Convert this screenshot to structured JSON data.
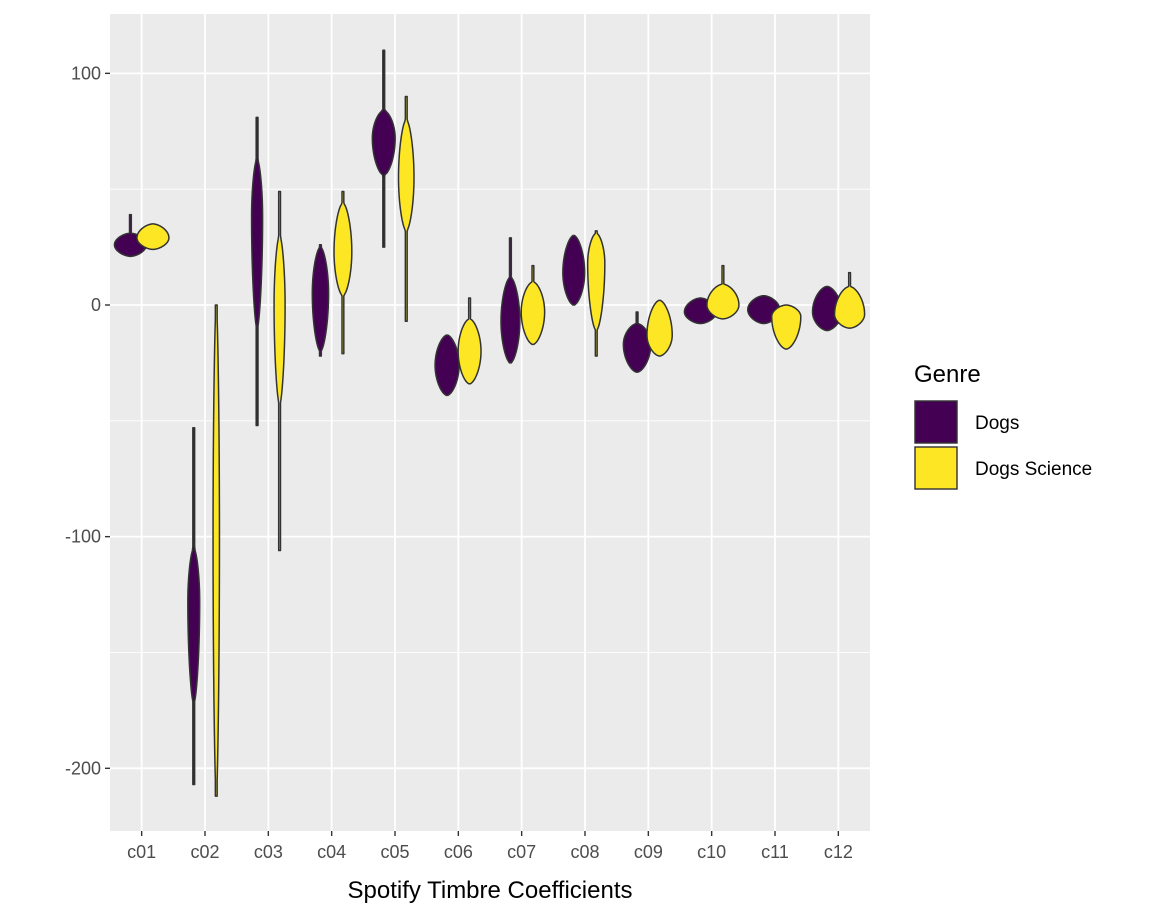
{
  "chart_data": {
    "type": "violin",
    "xlabel": "Spotify Timbre Coefficients",
    "ylabel": "",
    "ylim": [
      -227,
      125
    ],
    "yticks": [
      100,
      0,
      -100,
      -200
    ],
    "ytick_labels": [
      "100",
      "0",
      "-100",
      "-200"
    ],
    "grid": true,
    "legend": {
      "title": "Genre",
      "position": "right"
    },
    "categories": [
      "c01",
      "c02",
      "c03",
      "c04",
      "c05",
      "c06",
      "c07",
      "c08",
      "c09",
      "c10",
      "c11",
      "c12"
    ],
    "series": [
      {
        "name": "Dogs",
        "color": "#440154",
        "violins": [
          {
            "min": 21,
            "max": 39,
            "body_lo": 21,
            "body_hi": 31,
            "peak": 26
          },
          {
            "min": -207,
            "max": -53,
            "body_lo": -172,
            "body_hi": -105,
            "peak": -128
          },
          {
            "min": -52,
            "max": 81,
            "body_lo": -10,
            "body_hi": 63,
            "peak": 38
          },
          {
            "min": -22,
            "max": 26,
            "body_lo": -20,
            "body_hi": 25,
            "peak": 5
          },
          {
            "min": 25,
            "max": 110,
            "body_lo": 56,
            "body_hi": 84,
            "peak": 72
          },
          {
            "min": -39,
            "max": -13,
            "body_lo": -39,
            "body_hi": -13,
            "peak": -26
          },
          {
            "min": -25,
            "max": 29,
            "body_lo": -25,
            "body_hi": 12,
            "peak": -7
          },
          {
            "min": 0,
            "max": 30,
            "body_lo": 0,
            "body_hi": 30,
            "peak": 14
          },
          {
            "min": -29,
            "max": -3,
            "body_lo": -29,
            "body_hi": -8,
            "peak": -17
          },
          {
            "min": -8,
            "max": 3,
            "body_lo": -8,
            "body_hi": 3,
            "peak": -3
          },
          {
            "min": -8,
            "max": 4,
            "body_lo": -8,
            "body_hi": 4,
            "peak": -2
          },
          {
            "min": -11,
            "max": 8,
            "body_lo": -11,
            "body_hi": 8,
            "peak": -3
          }
        ]
      },
      {
        "name": "Dogs Science",
        "color": "#fde725",
        "violins": [
          {
            "min": 24,
            "max": 35,
            "body_lo": 24,
            "body_hi": 35,
            "peak": 29
          },
          {
            "min": -212,
            "max": 0,
            "body_lo": -212,
            "body_hi": 0,
            "peak": -100
          },
          {
            "min": -106,
            "max": 49,
            "body_lo": -43,
            "body_hi": 30,
            "peak": 0
          },
          {
            "min": -21,
            "max": 49,
            "body_lo": 4,
            "body_hi": 44,
            "peak": 23
          },
          {
            "min": -7,
            "max": 90,
            "body_lo": 32,
            "body_hi": 80,
            "peak": 55
          },
          {
            "min": -34,
            "max": 3,
            "body_lo": -34,
            "body_hi": -6,
            "peak": -20
          },
          {
            "min": -17,
            "max": 17,
            "body_lo": -17,
            "body_hi": 10,
            "peak": -3
          },
          {
            "min": -22,
            "max": 32,
            "body_lo": -11,
            "body_hi": 31,
            "peak": 18
          },
          {
            "min": -22,
            "max": 2,
            "body_lo": -22,
            "body_hi": 2,
            "peak": -13
          },
          {
            "min": -6,
            "max": 17,
            "body_lo": -6,
            "body_hi": 9,
            "peak": 0
          },
          {
            "min": -19,
            "max": 0,
            "body_lo": -19,
            "body_hi": 0,
            "peak": -5
          },
          {
            "min": -10,
            "max": 14,
            "body_lo": -10,
            "body_hi": 8,
            "peak": -4
          }
        ]
      }
    ]
  }
}
